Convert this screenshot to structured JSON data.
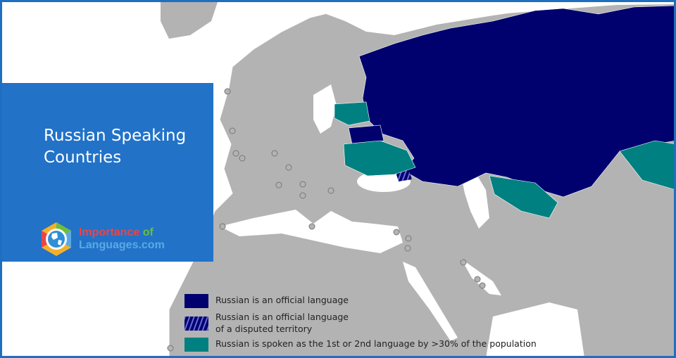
{
  "panel": {
    "title_line1": "Russian Speaking",
    "title_line2": "Countries"
  },
  "logo": {
    "word1": "Importance",
    "word2": "of",
    "word3": "Languages.com"
  },
  "legend": {
    "items": [
      {
        "label": "Russian is an official language",
        "color": "#00006e"
      },
      {
        "label_line1": "Russian is an official language",
        "label_line2": "of a disputed territory",
        "color": "#00006e",
        "pattern": "hatched"
      },
      {
        "label": "Russian is spoken as the 1st or 2nd language by >30% of the population",
        "color": "#008080"
      }
    ]
  },
  "colors": {
    "land": "#b3b3b3",
    "sea": "#ffffff",
    "official": "#00006e",
    "spoken": "#008080",
    "panel": "#2272c8"
  }
}
